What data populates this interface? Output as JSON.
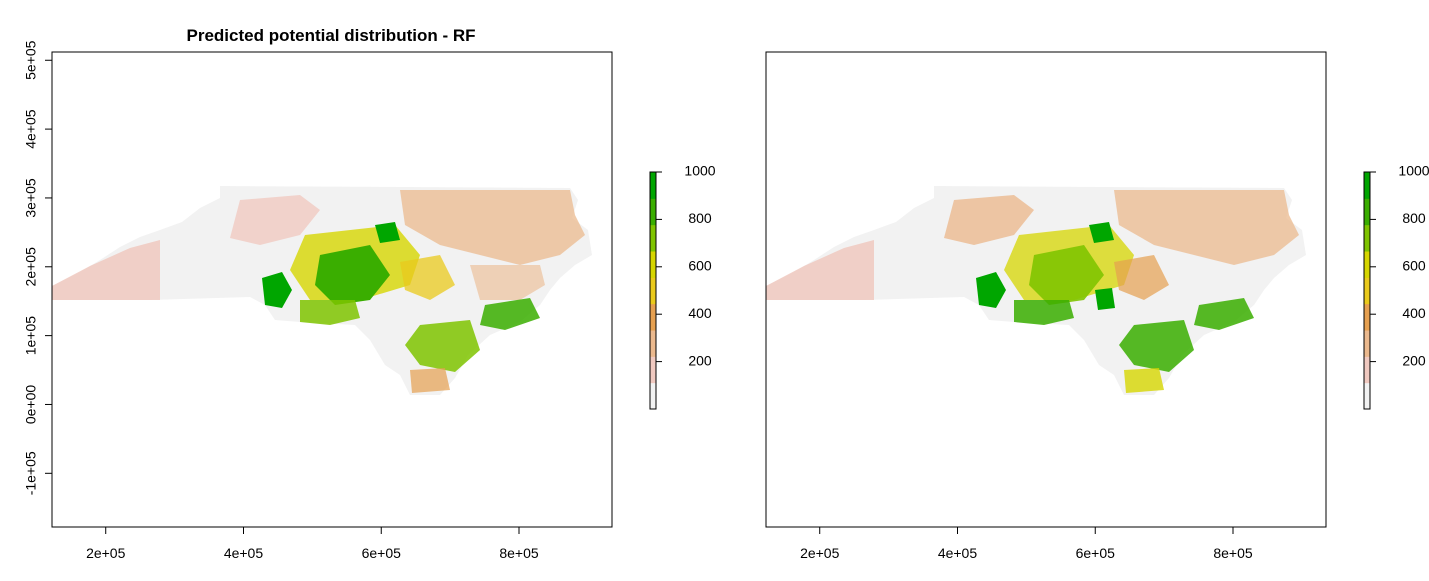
{
  "panels": [
    {
      "title": "Predicted potential distribution - RF",
      "x_ticks": [
        {
          "value": 200000,
          "label": "2e+05"
        },
        {
          "value": 400000,
          "label": "4e+05"
        },
        {
          "value": 600000,
          "label": "6e+05"
        },
        {
          "value": 800000,
          "label": "8e+05"
        }
      ],
      "y_ticks": [
        {
          "value": -100000,
          "label": "-1e+05"
        },
        {
          "value": 0,
          "label": "0e+00"
        },
        {
          "value": 100000,
          "label": "1e+05"
        },
        {
          "value": 200000,
          "label": "2e+05"
        },
        {
          "value": 300000,
          "label": "3e+05"
        },
        {
          "value": 400000,
          "label": "4e+05"
        },
        {
          "value": 500000,
          "label": "5e+05"
        }
      ],
      "xlim": [
        122000,
        935000
      ],
      "ylim": [
        -178000,
        512000
      ],
      "legend_ticks": [
        200,
        400,
        600,
        800,
        1000
      ],
      "legend_range": [
        0,
        1000
      ],
      "show_y_axis": true
    },
    {
      "title": "",
      "x_ticks": [
        {
          "value": 200000,
          "label": "2e+05"
        },
        {
          "value": 400000,
          "label": "4e+05"
        },
        {
          "value": 600000,
          "label": "6e+05"
        },
        {
          "value": 800000,
          "label": "8e+05"
        }
      ],
      "y_ticks": [],
      "xlim": [
        122000,
        935000
      ],
      "ylim": [
        -178000,
        512000
      ],
      "legend_ticks": [
        200,
        400,
        600,
        800,
        1000
      ],
      "legend_range": [
        0,
        1000
      ],
      "show_y_axis": false
    }
  ],
  "color_scale": [
    "#f2f2f2",
    "#f0c9c0",
    "#ebb98e",
    "#e6a050",
    "#eaca1c",
    "#d6d600",
    "#7fc400",
    "#3aae00",
    "#00a600"
  ]
}
